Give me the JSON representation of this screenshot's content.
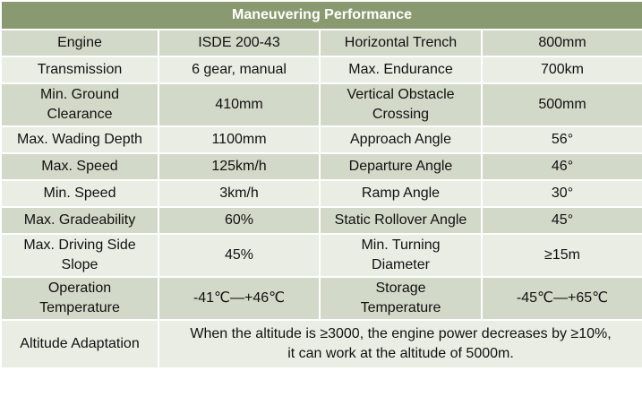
{
  "title": "Maneuvering Performance",
  "rows": [
    {
      "l1": "Engine",
      "v1": "ISDE 200-43",
      "l2": "Horizontal Trench",
      "v2": "800mm"
    },
    {
      "l1": "Transmission",
      "v1": "6 gear, manual",
      "l2": "Max. Endurance",
      "v2": "700km"
    },
    {
      "l1": "Min. Ground Clearance",
      "v1": "410mm",
      "l2": "Vertical Obstacle Crossing",
      "v2": "500mm"
    },
    {
      "l1": "Max. Wading Depth",
      "v1": "1100mm",
      "l2": "Approach Angle",
      "v2": "56°"
    },
    {
      "l1": "Max. Speed",
      "v1": "125km/h",
      "l2": "Departure Angle",
      "v2": "46°"
    },
    {
      "l1": "Min. Speed",
      "v1": "3km/h",
      "l2": "Ramp Angle",
      "v2": "30°"
    },
    {
      "l1": "Max. Gradeability",
      "v1": "60%",
      "l2": "Static Rollover Angle",
      "v2": "45°"
    },
    {
      "l1": "Max. Driving Side Slope",
      "v1": "45%",
      "l2": "Min. Turning Diameter",
      "v2": "≥15m"
    },
    {
      "l1": "Operation Temperature",
      "v1": "-41℃—+46℃",
      "l2": "Storage Temperature",
      "v2": "-45℃—+65℃"
    }
  ],
  "altitude": {
    "label": "Altitude Adaptation",
    "line1": "When the altitude is ≥3000, the engine power decreases by ≥10%,",
    "line2": "it can work at the altitude of 5000m."
  }
}
